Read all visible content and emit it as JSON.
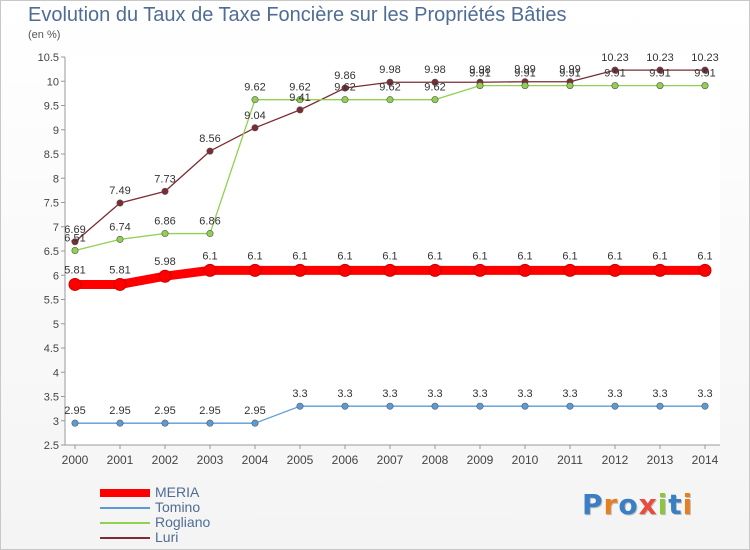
{
  "chart_data": {
    "type": "line",
    "title": "Evolution du Taux de Taxe Foncière sur les Propriétés Bâties",
    "unit": "(en %)",
    "x": [
      "2000",
      "2001",
      "2002",
      "2003",
      "2004",
      "2005",
      "2006",
      "2007",
      "2008",
      "2009",
      "2010",
      "2011",
      "2012",
      "2013",
      "2014"
    ],
    "ylim": [
      2.5,
      10.5
    ],
    "yticks": [
      "2.5",
      "3",
      "3.5",
      "4",
      "4.5",
      "5",
      "5.5",
      "6",
      "6.5",
      "7",
      "7.5",
      "8",
      "8.5",
      "9",
      "9.5",
      "10",
      "10.5"
    ],
    "grid": false,
    "legend_position": "bottom-left",
    "series": [
      {
        "name": "MERIA",
        "color": "#ff0000",
        "values": [
          5.81,
          5.81,
          5.98,
          6.1,
          6.1,
          6.1,
          6.1,
          6.1,
          6.1,
          6.1,
          6.1,
          6.1,
          6.1,
          6.1,
          6.1
        ],
        "labels": [
          "5.81",
          "5.81",
          "5.98",
          "6.1",
          "6.1",
          "6.1",
          "6.1",
          "6.1",
          "6.1",
          "6.1",
          "6.1",
          "6.1",
          "6.1",
          "6.1",
          "6.1"
        ]
      },
      {
        "name": "Tomino",
        "color": "#5b9bd5",
        "values": [
          2.95,
          2.95,
          2.95,
          2.95,
          2.95,
          3.3,
          3.3,
          3.3,
          3.3,
          3.3,
          3.3,
          3.3,
          3.3,
          3.3,
          3.3
        ],
        "labels": [
          "2.95",
          "2.95",
          "2.95",
          "2.95",
          "2.95",
          "3.3",
          "3.3",
          "3.3",
          "3.3",
          "3.3",
          "3.3",
          "3.3",
          "3.3",
          "3.3",
          "3.3"
        ]
      },
      {
        "name": "Rogliano",
        "color": "#92d050",
        "values": [
          6.51,
          6.74,
          6.86,
          6.86,
          9.62,
          9.62,
          9.62,
          9.62,
          9.62,
          9.91,
          9.91,
          9.91,
          9.91,
          9.91,
          9.91
        ],
        "labels": [
          "6.51",
          "6.74",
          "6.86",
          "6.86",
          "9.62",
          "9.62",
          "9.62",
          "9.62",
          "9.62",
          "9.91",
          "9.91",
          "9.91",
          "9.91",
          "9.91",
          "9.91"
        ]
      },
      {
        "name": "Luri",
        "color": "#7b2c34",
        "values": [
          6.69,
          7.49,
          7.73,
          8.56,
          9.04,
          9.41,
          9.86,
          9.98,
          9.98,
          9.98,
          9.99,
          9.99,
          10.23,
          10.23,
          10.23
        ],
        "labels": [
          "6.69",
          "7.49",
          "7.73",
          "8.56",
          "9.04",
          "9.41",
          "9.86",
          "9.98",
          "9.98",
          "9.98",
          "9.99",
          "9.99",
          "10.23",
          "10.23",
          "10.23"
        ]
      }
    ]
  },
  "brand": {
    "letters": [
      "P",
      "r",
      "o",
      "x",
      "i",
      "t",
      "i"
    ],
    "colors": [
      "#3a7fc4",
      "#e67e22",
      "#3a7fc4",
      "#e74c3c",
      "#8cc63f",
      "#3a7fc4",
      "#e67e22"
    ]
  }
}
